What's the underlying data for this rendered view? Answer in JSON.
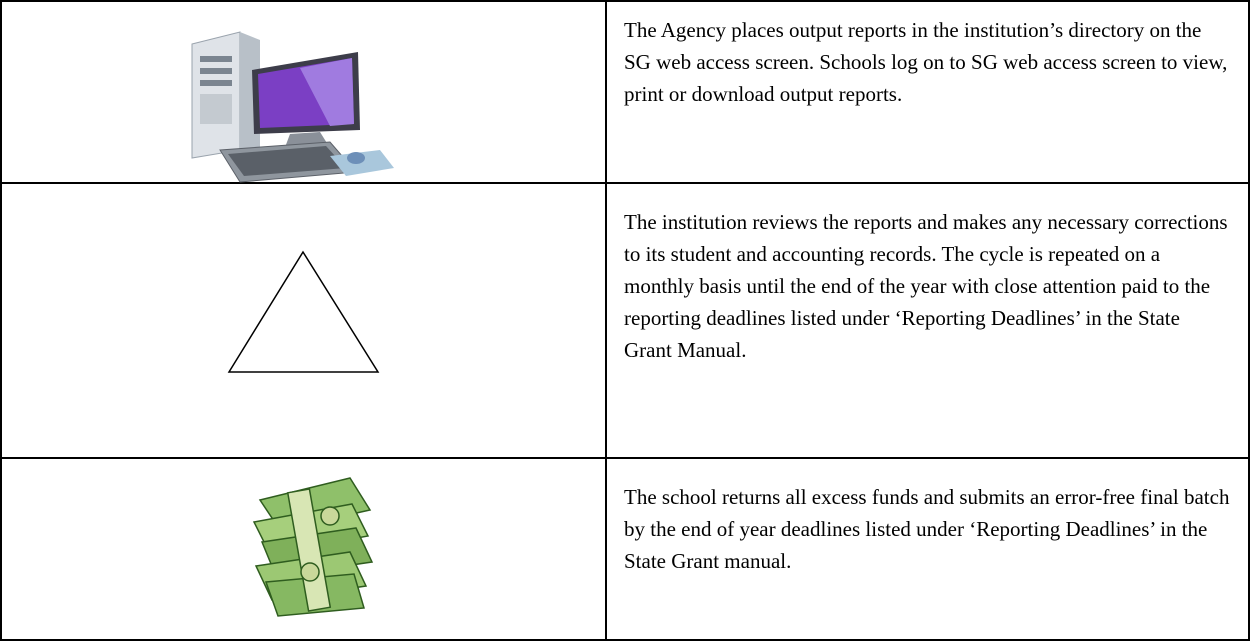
{
  "table": {
    "rows": [
      {
        "text": "The Agency places output reports in the institution’s directory on the SG web access screen. Schools log on to SG web access screen to view, print or download output reports."
      },
      {
        "text": "The institution reviews the reports and makes any necessary corrections to its student and accounting records. The cycle is repeated on a monthly basis until the end of the year with close attention paid to the reporting deadlines listed under ‘Reporting Deadlines’ in the State Grant Manual."
      },
      {
        "text": "The school returns all excess funds and submits an error-free final batch by the end of year deadlines listed under ‘Reporting Deadlines’ in the State Grant manual."
      }
    ]
  }
}
